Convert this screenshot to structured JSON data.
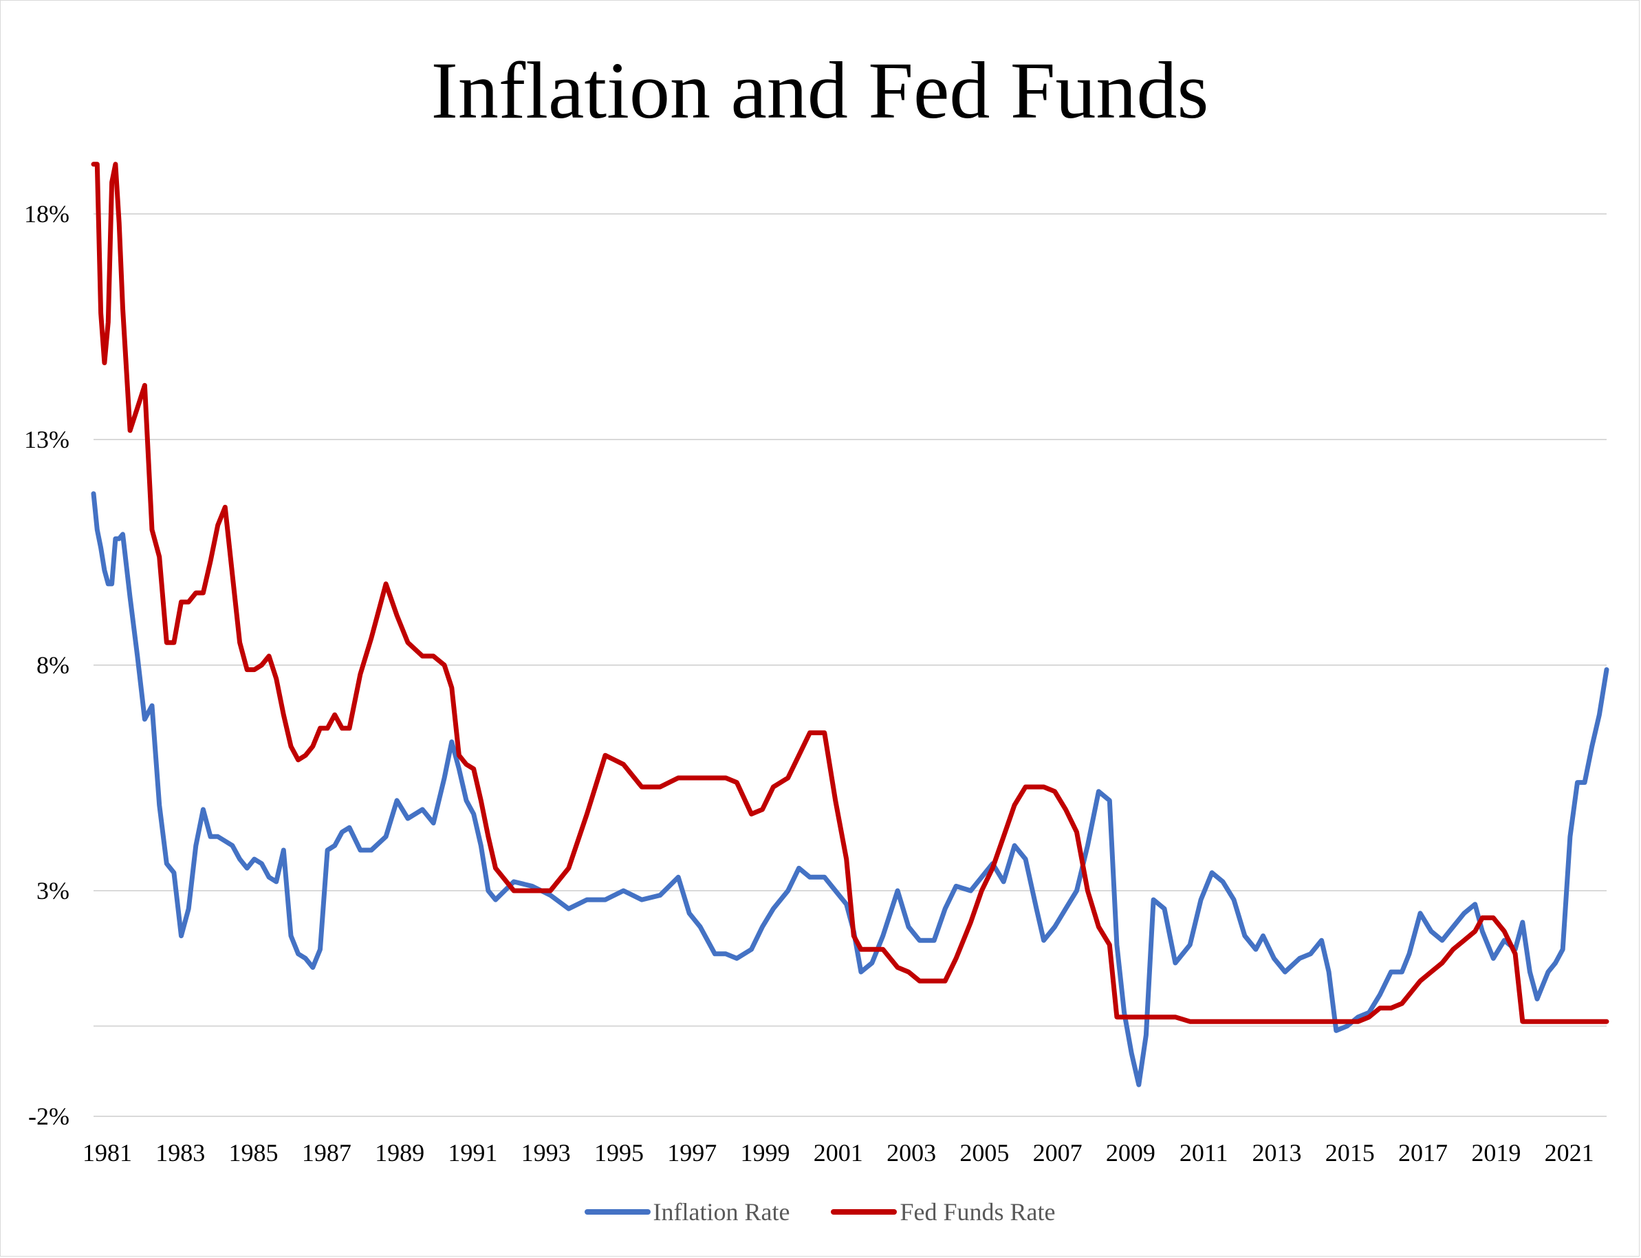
{
  "chart_data": {
    "type": "line",
    "title": "Inflation and Fed Funds",
    "xlabel": "",
    "ylabel": "",
    "x_ticks": [
      "1981",
      "1983",
      "1985",
      "1987",
      "1989",
      "1991",
      "1993",
      "1995",
      "1997",
      "1999",
      "2001",
      "2003",
      "2005",
      "2007",
      "2009",
      "2011",
      "2013",
      "2015",
      "2017",
      "2019",
      "2021"
    ],
    "y_ticks": [
      "18%",
      "13%",
      "8%",
      "3%",
      "-2%"
    ],
    "y_tick_values": [
      18,
      13,
      8,
      3,
      -2
    ],
    "xlim": [
      1981.0,
      2022.4
    ],
    "ylim": [
      -2,
      18
    ],
    "grid": true,
    "legend_position": "bottom-center",
    "series": [
      {
        "name": "Inflation Rate",
        "color": "#4472c4",
        "x": [
          1981.0,
          1981.1,
          1981.2,
          1981.3,
          1981.4,
          1981.5,
          1981.6,
          1981.7,
          1981.8,
          1982.0,
          1982.2,
          1982.4,
          1982.6,
          1982.8,
          1983.0,
          1983.2,
          1983.4,
          1983.6,
          1983.8,
          1984.0,
          1984.2,
          1984.4,
          1984.6,
          1984.8,
          1985.0,
          1985.2,
          1985.4,
          1985.6,
          1985.8,
          1986.0,
          1986.2,
          1986.4,
          1986.6,
          1986.8,
          1987.0,
          1987.2,
          1987.4,
          1987.6,
          1987.8,
          1988.0,
          1988.3,
          1988.6,
          1989.0,
          1989.3,
          1989.6,
          1990.0,
          1990.3,
          1990.6,
          1990.8,
          1991.0,
          1991.2,
          1991.4,
          1991.6,
          1991.8,
          1992.0,
          1992.5,
          1993.0,
          1993.5,
          1994.0,
          1994.5,
          1995.0,
          1995.5,
          1996.0,
          1996.5,
          1997.0,
          1997.3,
          1997.6,
          1998.0,
          1998.3,
          1998.6,
          1999.0,
          1999.3,
          1999.6,
          2000.0,
          2000.3,
          2000.6,
          2001.0,
          2001.3,
          2001.6,
          2001.8,
          2002.0,
          2002.3,
          2002.6,
          2003.0,
          2003.3,
          2003.6,
          2004.0,
          2004.3,
          2004.6,
          2005.0,
          2005.3,
          2005.6,
          2005.9,
          2006.2,
          2006.5,
          2006.8,
          2007.0,
          2007.3,
          2007.6,
          2007.9,
          2008.2,
          2008.5,
          2008.8,
          2009.0,
          2009.2,
          2009.4,
          2009.6,
          2009.8,
          2010.0,
          2010.3,
          2010.6,
          2011.0,
          2011.3,
          2011.6,
          2011.9,
          2012.2,
          2012.5,
          2012.8,
          2013.0,
          2013.3,
          2013.6,
          2014.0,
          2014.3,
          2014.6,
          2014.8,
          2015.0,
          2015.3,
          2015.6,
          2015.9,
          2016.2,
          2016.5,
          2016.8,
          2017.0,
          2017.3,
          2017.6,
          2017.9,
          2018.2,
          2018.5,
          2018.8,
          2019.0,
          2019.3,
          2019.6,
          2019.9,
          2020.1,
          2020.3,
          2020.5,
          2020.8,
          2021.0,
          2021.2,
          2021.4,
          2021.6,
          2021.8,
          2022.0,
          2022.2,
          2022.4
        ],
        "values": [
          11.8,
          11.0,
          10.6,
          10.1,
          9.8,
          9.8,
          10.8,
          10.8,
          10.9,
          9.5,
          8.2,
          6.8,
          7.1,
          4.9,
          3.6,
          3.4,
          2.0,
          2.6,
          4.0,
          4.8,
          4.2,
          4.2,
          4.1,
          4.0,
          3.7,
          3.5,
          3.7,
          3.6,
          3.3,
          3.2,
          3.9,
          2.0,
          1.6,
          1.5,
          1.3,
          1.7,
          3.9,
          4.0,
          4.3,
          4.4,
          3.9,
          3.9,
          4.2,
          5.0,
          4.6,
          4.8,
          4.5,
          5.5,
          6.3,
          5.7,
          5.0,
          4.7,
          4.0,
          3.0,
          2.8,
          3.2,
          3.1,
          2.9,
          2.6,
          2.8,
          2.8,
          3.0,
          2.8,
          2.9,
          3.3,
          2.5,
          2.2,
          1.6,
          1.6,
          1.5,
          1.7,
          2.2,
          2.6,
          3.0,
          3.5,
          3.3,
          3.3,
          3.0,
          2.7,
          2.1,
          1.2,
          1.4,
          2.0,
          3.0,
          2.2,
          1.9,
          1.9,
          2.6,
          3.1,
          3.0,
          3.3,
          3.6,
          3.2,
          4.0,
          3.7,
          2.6,
          1.9,
          2.2,
          2.6,
          3.0,
          4.0,
          5.2,
          5.0,
          1.8,
          0.3,
          -0.6,
          -1.3,
          -0.2,
          2.8,
          2.6,
          1.4,
          1.8,
          2.8,
          3.4,
          3.2,
          2.8,
          2.0,
          1.7,
          2.0,
          1.5,
          1.2,
          1.5,
          1.6,
          1.9,
          1.2,
          -0.1,
          0.0,
          0.2,
          0.3,
          0.7,
          1.2,
          1.2,
          1.6,
          2.5,
          2.1,
          1.9,
          2.2,
          2.5,
          2.7,
          2.1,
          1.5,
          1.9,
          1.7,
          2.3,
          1.2,
          0.6,
          1.2,
          1.4,
          1.7,
          4.2,
          5.4,
          5.4,
          6.2,
          6.9,
          7.9
        ]
      },
      {
        "name": "Fed Funds Rate",
        "color": "#c00000",
        "x": [
          1981.0,
          1981.1,
          1981.2,
          1981.3,
          1981.4,
          1981.5,
          1981.6,
          1981.7,
          1981.8,
          1982.0,
          1982.2,
          1982.4,
          1982.6,
          1982.8,
          1983.0,
          1983.2,
          1983.4,
          1983.6,
          1983.8,
          1984.0,
          1984.2,
          1984.4,
          1984.6,
          1984.8,
          1985.0,
          1985.2,
          1985.4,
          1985.6,
          1985.8,
          1986.0,
          1986.2,
          1986.4,
          1986.6,
          1986.8,
          1987.0,
          1987.2,
          1987.4,
          1987.6,
          1987.8,
          1988.0,
          1988.3,
          1988.6,
          1989.0,
          1989.3,
          1989.6,
          1990.0,
          1990.3,
          1990.6,
          1990.8,
          1991.0,
          1991.2,
          1991.4,
          1991.6,
          1991.8,
          1992.0,
          1992.5,
          1993.0,
          1993.5,
          1994.0,
          1994.5,
          1995.0,
          1995.5,
          1996.0,
          1996.5,
          1997.0,
          1997.3,
          1997.6,
          1998.0,
          1998.3,
          1998.6,
          1999.0,
          1999.3,
          1999.6,
          2000.0,
          2000.3,
          2000.6,
          2001.0,
          2001.3,
          2001.6,
          2001.8,
          2002.0,
          2002.3,
          2002.6,
          2003.0,
          2003.3,
          2003.6,
          2004.0,
          2004.3,
          2004.6,
          2005.0,
          2005.3,
          2005.6,
          2005.9,
          2006.2,
          2006.5,
          2006.8,
          2007.0,
          2007.3,
          2007.6,
          2007.9,
          2008.2,
          2008.5,
          2008.8,
          2009.0,
          2009.2,
          2009.4,
          2009.6,
          2009.8,
          2010.0,
          2010.3,
          2010.6,
          2011.0,
          2011.3,
          2011.6,
          2011.9,
          2012.2,
          2012.5,
          2012.8,
          2013.0,
          2013.3,
          2013.6,
          2014.0,
          2014.3,
          2014.6,
          2014.8,
          2015.0,
          2015.3,
          2015.6,
          2015.9,
          2016.2,
          2016.5,
          2016.8,
          2017.0,
          2017.3,
          2017.6,
          2017.9,
          2018.2,
          2018.5,
          2018.8,
          2019.0,
          2019.3,
          2019.6,
          2019.9,
          2020.1,
          2020.3,
          2020.5,
          2020.8,
          2021.0,
          2021.2,
          2021.4,
          2021.6,
          2021.8,
          2022.0,
          2022.2,
          2022.4
        ],
        "values": [
          19.1,
          19.1,
          15.8,
          14.7,
          15.6,
          18.7,
          19.1,
          17.8,
          15.9,
          13.2,
          13.7,
          14.2,
          11.0,
          10.4,
          8.5,
          8.5,
          9.4,
          9.4,
          9.6,
          9.6,
          10.3,
          11.1,
          11.5,
          10.0,
          8.5,
          7.9,
          7.9,
          8.0,
          8.2,
          7.7,
          6.9,
          6.2,
          5.9,
          6.0,
          6.2,
          6.6,
          6.6,
          6.9,
          6.6,
          6.6,
          7.8,
          8.6,
          9.8,
          9.1,
          8.5,
          8.2,
          8.2,
          8.0,
          7.5,
          6.0,
          5.8,
          5.7,
          5.0,
          4.2,
          3.5,
          3.0,
          3.0,
          3.0,
          3.5,
          4.7,
          6.0,
          5.8,
          5.3,
          5.3,
          5.5,
          5.5,
          5.5,
          5.5,
          5.5,
          5.4,
          4.7,
          4.8,
          5.3,
          5.5,
          6.0,
          6.5,
          6.5,
          5.0,
          3.7,
          2.0,
          1.7,
          1.7,
          1.7,
          1.3,
          1.2,
          1.0,
          1.0,
          1.0,
          1.5,
          2.3,
          3.0,
          3.5,
          4.2,
          4.9,
          5.3,
          5.3,
          5.3,
          5.2,
          4.8,
          4.3,
          3.0,
          2.2,
          1.8,
          0.2,
          0.2,
          0.2,
          0.2,
          0.2,
          0.2,
          0.2,
          0.2,
          0.1,
          0.1,
          0.1,
          0.1,
          0.1,
          0.1,
          0.1,
          0.1,
          0.1,
          0.1,
          0.1,
          0.1,
          0.1,
          0.1,
          0.1,
          0.1,
          0.1,
          0.2,
          0.4,
          0.4,
          0.5,
          0.7,
          1.0,
          1.2,
          1.4,
          1.7,
          1.9,
          2.1,
          2.4,
          2.4,
          2.1,
          1.6,
          0.1,
          0.1,
          0.1,
          0.1,
          0.1,
          0.1,
          0.1,
          0.1,
          0.1,
          0.1,
          0.1,
          0.1
        ]
      }
    ]
  }
}
